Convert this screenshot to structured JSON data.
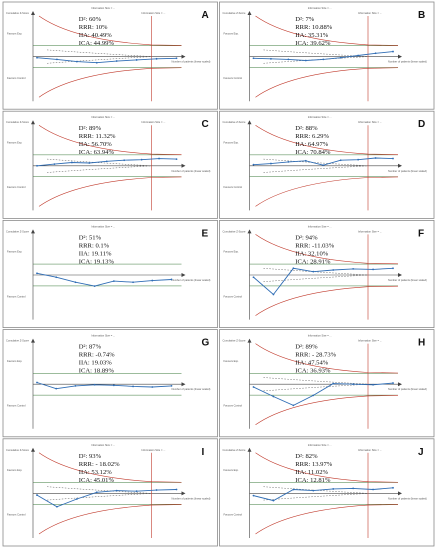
{
  "figure": {
    "panels": [
      {
        "letter": "A",
        "d2": "D²: 60%",
        "rrr": "RRR: 10%",
        "iia": "IIA: 40.49%",
        "ica": "ICA: 44.99%",
        "top": "Information Size = ...",
        "cumz": "Cumulative Z-Score",
        "favours_top": "Favours Exp.",
        "favours_bot": "Favours Control",
        "rows": "Number of patients (linear scaled)"
      },
      {
        "letter": "B",
        "d2": "D²: 7%",
        "rrr": "RRR: 10.88%",
        "iia": "IIA: 35.31%",
        "ica": "ICA: 39.62%"
      },
      {
        "letter": "C",
        "d2": "D²: 89%",
        "rrr": "RRR: 11.32%",
        "iia": "IIA: 56.70%",
        "ica": "ICA: 63.94%"
      },
      {
        "letter": "D",
        "d2": "D²: 88%",
        "rrr": "RRR: 6.29%",
        "iia": "IIA: 64.97%",
        "ica": "ICA: 70.84%"
      },
      {
        "letter": "E",
        "d2": "D²: 51%",
        "rrr": "RRR: 0.1%",
        "iia": "IIA: 19.11%",
        "ica": "ICA: 19.13%"
      },
      {
        "letter": "F",
        "d2": "D²: 94%",
        "rrr": "RRR: -11.03%",
        "iia": "IIA: 32.10%",
        "ica": "ICA: 28.91%"
      },
      {
        "letter": "G",
        "d2": "D²: 87%",
        "rrr": "RRR: -0.74%",
        "iia": "IIA: 19.03%",
        "ica": "ICA: 18.89%"
      },
      {
        "letter": "H",
        "d2": "D²: 89%",
        "rrr": "RRR: - 28.73%",
        "iia": "IIA: 47.54%",
        "ica": "ICA: 36.93%"
      },
      {
        "letter": "I",
        "d2": "D²: 93%",
        "rrr": "RRR: - 18.02%",
        "iia": "IIA: 53.12%",
        "ica": "ICA: 45.01%"
      },
      {
        "letter": "J",
        "d2": "D²: 82%",
        "rrr": "RRR: 13.97%",
        "iia": "IIA: 11.02%",
        "ica": "ICA: 12.81%"
      }
    ]
  },
  "chart_data": [
    {
      "type": "line",
      "panel": "A",
      "x": [
        0,
        1,
        2,
        3,
        4,
        5,
        6,
        7
      ],
      "series": [
        {
          "values": [
            -0.2,
            -0.5,
            -0.9,
            -1.1,
            -0.8,
            -0.6,
            -0.4,
            -0.3
          ]
        }
      ],
      "boundaries": true,
      "ylim": [
        -8,
        8
      ]
    },
    {
      "type": "line",
      "panel": "B",
      "x": [
        0,
        1,
        2,
        3,
        4,
        5,
        6,
        7,
        8
      ],
      "series": [
        {
          "values": [
            -0.3,
            -0.4,
            -0.5,
            -0.7,
            -0.5,
            -0.2,
            0.2,
            0.6,
            0.9
          ]
        }
      ],
      "boundaries": true,
      "ylim": [
        -8,
        8
      ]
    },
    {
      "type": "line",
      "panel": "C",
      "x": [
        0,
        1,
        2,
        3,
        4,
        5,
        6,
        7,
        8
      ],
      "series": [
        {
          "values": [
            0.0,
            0.3,
            0.6,
            0.5,
            0.8,
            1.0,
            1.1,
            1.3,
            1.2
          ]
        }
      ],
      "boundaries": true,
      "ylim": [
        -8,
        8
      ]
    },
    {
      "type": "line",
      "panel": "D",
      "x": [
        0,
        1,
        2,
        3,
        4,
        5,
        6,
        7,
        8
      ],
      "series": [
        {
          "values": [
            0.2,
            0.4,
            0.7,
            0.9,
            0.1,
            1.0,
            1.1,
            1.4,
            1.3
          ]
        }
      ],
      "boundaries": true,
      "ylim": [
        -8,
        8
      ]
    },
    {
      "type": "line",
      "panel": "E",
      "x": [
        0,
        1,
        2,
        3,
        4,
        5,
        6,
        7
      ],
      "series": [
        {
          "values": [
            0.3,
            -0.4,
            -1.3,
            -2.0,
            -1.1,
            -1.3,
            -1.0,
            -0.8
          ]
        }
      ],
      "boundaries": false,
      "ylim": [
        -8,
        8
      ]
    },
    {
      "type": "line",
      "panel": "F",
      "x": [
        0,
        1,
        2,
        3,
        4,
        5,
        6,
        7
      ],
      "series": [
        {
          "values": [
            -0.4,
            -3.5,
            1.2,
            0.6,
            0.9,
            1.1,
            1.0,
            1.2
          ]
        }
      ],
      "boundaries": true,
      "ylim": [
        -8,
        8
      ]
    },
    {
      "type": "line",
      "panel": "G",
      "x": [
        0,
        1,
        2,
        3,
        4,
        5,
        6,
        7
      ],
      "series": [
        {
          "values": [
            0.3,
            -0.8,
            -0.3,
            -0.1,
            -0.2,
            -0.4,
            -0.5,
            -0.3
          ]
        }
      ],
      "boundaries": false,
      "ylim": [
        -8,
        8
      ]
    },
    {
      "type": "line",
      "panel": "H",
      "x": [
        0,
        1,
        2,
        3,
        4,
        5,
        6,
        7
      ],
      "series": [
        {
          "values": [
            -0.5,
            -2.2,
            -3.8,
            -2.0,
            0.1,
            0.0,
            -0.1,
            0.2
          ]
        }
      ],
      "boundaries": true,
      "ylim": [
        -8,
        8
      ]
    },
    {
      "type": "line",
      "panel": "I",
      "x": [
        0,
        1,
        2,
        3,
        4,
        5,
        6,
        7
      ],
      "series": [
        {
          "values": [
            -0.3,
            -2.4,
            -1.0,
            0.2,
            0.5,
            0.4,
            0.6,
            0.7
          ]
        }
      ],
      "boundaries": true,
      "ylim": [
        -8,
        8
      ]
    },
    {
      "type": "line",
      "panel": "J",
      "x": [
        0,
        1,
        2,
        3,
        4,
        5,
        6,
        7
      ],
      "series": [
        {
          "values": [
            -0.4,
            -1.3,
            0.7,
            0.5,
            0.8,
            0.9,
            0.7,
            1.0
          ]
        }
      ],
      "boundaries": true,
      "ylim": [
        -8,
        8
      ]
    }
  ]
}
